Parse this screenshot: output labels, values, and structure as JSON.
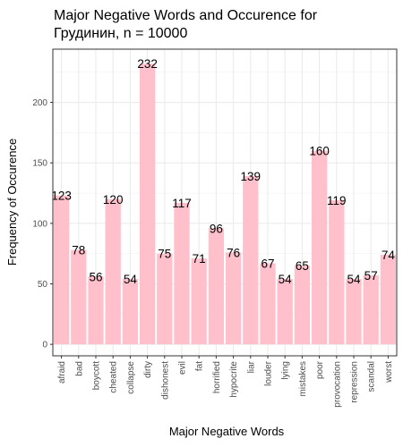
{
  "chart_data": {
    "type": "bar",
    "title_line1": "Major Negative Words and Occurence for",
    "title_line2": "Грудинин, n = 10000",
    "xlabel": "Major Negative Words",
    "ylabel": "Frequency of Occurence",
    "categories": [
      "afraid",
      "bad",
      "boycott",
      "cheated",
      "collapse",
      "dirty",
      "dishonest",
      "evil",
      "fat",
      "horrified",
      "hypocrite",
      "liar",
      "louder",
      "lying",
      "mistakes",
      "poor",
      "provocation",
      "repression",
      "scandal",
      "worst"
    ],
    "values": [
      123,
      78,
      56,
      120,
      54,
      232,
      75,
      117,
      71,
      96,
      76,
      139,
      67,
      54,
      65,
      160,
      119,
      54,
      57,
      74
    ],
    "yticks": [
      0,
      50,
      100,
      150,
      200
    ],
    "ylim": [
      0,
      240
    ],
    "grid": true,
    "bar_color": "#ffc0cb"
  }
}
